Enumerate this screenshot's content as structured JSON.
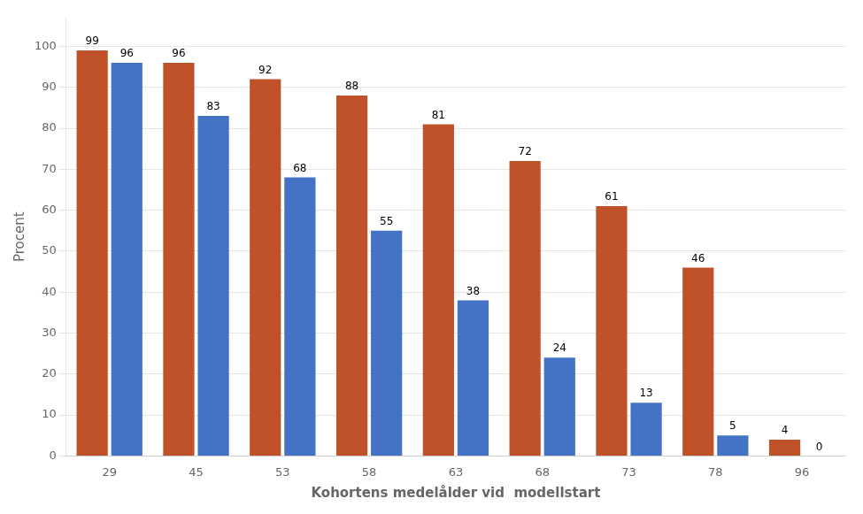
{
  "chart_data": {
    "type": "bar",
    "xlabel": "Kohortens medelålder vid  modellstart",
    "ylabel": "Procent",
    "categories": [
      "29",
      "45",
      "53",
      "58",
      "63",
      "68",
      "73",
      "78",
      "96"
    ],
    "series": [
      {
        "color": "#C0522A",
        "values": [
          99,
          96,
          92,
          88,
          81,
          72,
          61,
          46,
          4
        ]
      },
      {
        "color": "#4472C4",
        "values": [
          96,
          83,
          68,
          55,
          38,
          24,
          13,
          5,
          0
        ]
      }
    ],
    "ylim": [
      0,
      107
    ],
    "yticks": [
      0,
      10,
      20,
      30,
      40,
      50,
      60,
      70,
      80,
      90,
      100
    ],
    "grid": true,
    "data_labels": true
  }
}
